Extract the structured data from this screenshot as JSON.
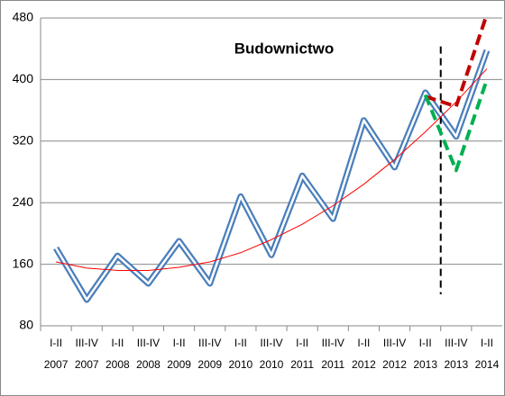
{
  "chart_data": {
    "type": "line",
    "title": "Budownictwo",
    "categories": [
      "I-II",
      "III-IV",
      "I-II",
      "III-IV",
      "I-II",
      "III-IV",
      "I-II",
      "III-IV",
      "I-II",
      "III-IV",
      "I-II",
      "III-IV",
      "I-II",
      "III-IV",
      "I-II"
    ],
    "category_years": [
      "2007",
      "2007",
      "2008",
      "2008",
      "2009",
      "2009",
      "2010",
      "2010",
      "2011",
      "2011",
      "2012",
      "2012",
      "2013",
      "2013",
      "2014"
    ],
    "series": [
      {
        "color": "#4a7ebb",
        "style": "double",
        "values": [
          181,
          114,
          171,
          135,
          190,
          135,
          248,
          172,
          275,
          219,
          347,
          286,
          383,
          326,
          438
        ]
      },
      {
        "color": "#ff0000",
        "style": "thin",
        "values": [
          163,
          155,
          152,
          152,
          156,
          163,
          175,
          192,
          212,
          236,
          264,
          296,
          332,
          371,
          414
        ]
      },
      {
        "color": "#c00000",
        "style": "dashed",
        "values": [
          null,
          null,
          null,
          null,
          null,
          null,
          null,
          null,
          null,
          null,
          null,
          null,
          378,
          365,
          485
        ]
      },
      {
        "color": "#00b050",
        "style": "dashed",
        "values": [
          null,
          null,
          null,
          null,
          null,
          null,
          null,
          null,
          null,
          null,
          null,
          null,
          380,
          282,
          400
        ]
      }
    ],
    "vline_y": [
      443,
      121
    ],
    "ylim": [
      80,
      480
    ],
    "yticks": [
      80,
      160,
      240,
      320,
      400,
      480
    ],
    "grid": true
  }
}
